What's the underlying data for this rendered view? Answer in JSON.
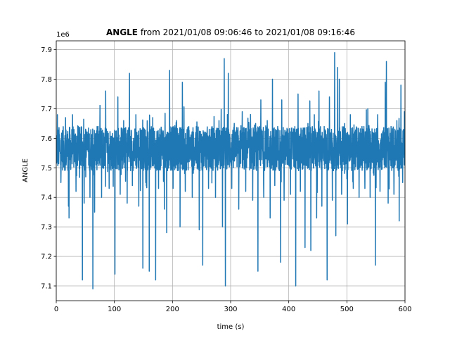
{
  "chart_data": {
    "type": "line",
    "title_bold": "ANGLE",
    "title_rest": " from 2021/01/08 09:06:46 to 2021/01/08 09:16:46",
    "xlabel": "time (s)",
    "ylabel": "ANGLE",
    "offset_label": "1e6",
    "xlim": [
      0,
      600
    ],
    "ylim": [
      7.05,
      7.93
    ],
    "x_ticks": [
      0,
      100,
      200,
      300,
      400,
      500,
      600
    ],
    "y_ticks": [
      7.1,
      7.2,
      7.3,
      7.4,
      7.5,
      7.6,
      7.7,
      7.8,
      7.9
    ],
    "x_tick_labels": [
      "0",
      "100",
      "200",
      "300",
      "400",
      "500",
      "600"
    ],
    "y_tick_labels": [
      "7.1",
      "7.2",
      "7.3",
      "7.4",
      "7.5",
      "7.6",
      "7.7",
      "7.8",
      "7.9"
    ],
    "grid": true,
    "line_color": "#1f77b4",
    "series": [
      {
        "baseline_band": [
          7.49,
          7.64
        ],
        "spikes": [
          {
            "x": 2,
            "y": 7.68
          },
          {
            "x": 8,
            "y": 7.45
          },
          {
            "x": 16,
            "y": 7.67
          },
          {
            "x": 21,
            "y": 7.37
          },
          {
            "x": 22,
            "y": 7.33
          },
          {
            "x": 28,
            "y": 7.68
          },
          {
            "x": 34,
            "y": 7.42
          },
          {
            "x": 38,
            "y": 7.64
          },
          {
            "x": 45,
            "y": 7.12
          },
          {
            "x": 48,
            "y": 7.38
          },
          {
            "x": 52,
            "y": 7.62
          },
          {
            "x": 58,
            "y": 7.4
          },
          {
            "x": 63,
            "y": 7.09
          },
          {
            "x": 66,
            "y": 7.35
          },
          {
            "x": 72,
            "y": 7.64
          },
          {
            "x": 78,
            "y": 7.4
          },
          {
            "x": 85,
            "y": 7.76
          },
          {
            "x": 91,
            "y": 7.43
          },
          {
            "x": 95,
            "y": 7.6
          },
          {
            "x": 101,
            "y": 7.14
          },
          {
            "x": 106,
            "y": 7.74
          },
          {
            "x": 110,
            "y": 7.41
          },
          {
            "x": 116,
            "y": 7.66
          },
          {
            "x": 122,
            "y": 7.38
          },
          {
            "x": 126,
            "y": 7.82
          },
          {
            "x": 131,
            "y": 7.44
          },
          {
            "x": 137,
            "y": 7.68
          },
          {
            "x": 142,
            "y": 7.37
          },
          {
            "x": 149,
            "y": 7.16
          },
          {
            "x": 154,
            "y": 7.45
          },
          {
            "x": 160,
            "y": 7.15
          },
          {
            "x": 166,
            "y": 7.67
          },
          {
            "x": 171,
            "y": 7.12
          },
          {
            "x": 176,
            "y": 7.43
          },
          {
            "x": 181,
            "y": 7.63
          },
          {
            "x": 186,
            "y": 7.36
          },
          {
            "x": 190,
            "y": 7.28
          },
          {
            "x": 195,
            "y": 7.83
          },
          {
            "x": 201,
            "y": 7.43
          },
          {
            "x": 207,
            "y": 7.66
          },
          {
            "x": 213,
            "y": 7.3
          },
          {
            "x": 217,
            "y": 7.79
          },
          {
            "x": 222,
            "y": 7.42
          },
          {
            "x": 228,
            "y": 7.64
          },
          {
            "x": 234,
            "y": 7.4
          },
          {
            "x": 240,
            "y": 7.62
          },
          {
            "x": 246,
            "y": 7.29
          },
          {
            "x": 252,
            "y": 7.17
          },
          {
            "x": 256,
            "y": 7.61
          },
          {
            "x": 262,
            "y": 7.43
          },
          {
            "x": 268,
            "y": 7.64
          },
          {
            "x": 274,
            "y": 7.4
          },
          {
            "x": 280,
            "y": 7.66
          },
          {
            "x": 286,
            "y": 7.3
          },
          {
            "x": 289,
            "y": 7.87
          },
          {
            "x": 291,
            "y": 7.1
          },
          {
            "x": 296,
            "y": 7.82
          },
          {
            "x": 302,
            "y": 7.43
          },
          {
            "x": 308,
            "y": 7.62
          },
          {
            "x": 314,
            "y": 7.36
          },
          {
            "x": 320,
            "y": 7.69
          },
          {
            "x": 326,
            "y": 7.42
          },
          {
            "x": 332,
            "y": 7.63
          },
          {
            "x": 338,
            "y": 7.39
          },
          {
            "x": 343,
            "y": 7.65
          },
          {
            "x": 347,
            "y": 7.15
          },
          {
            "x": 352,
            "y": 7.73
          },
          {
            "x": 357,
            "y": 7.4
          },
          {
            "x": 363,
            "y": 7.66
          },
          {
            "x": 368,
            "y": 7.33
          },
          {
            "x": 372,
            "y": 7.8
          },
          {
            "x": 376,
            "y": 7.44
          },
          {
            "x": 381,
            "y": 7.64
          },
          {
            "x": 386,
            "y": 7.18
          },
          {
            "x": 388,
            "y": 7.73
          },
          {
            "x": 392,
            "y": 7.39
          },
          {
            "x": 398,
            "y": 7.63
          },
          {
            "x": 403,
            "y": 7.41
          },
          {
            "x": 407,
            "y": 7.6
          },
          {
            "x": 412,
            "y": 7.1
          },
          {
            "x": 416,
            "y": 7.75
          },
          {
            "x": 420,
            "y": 7.42
          },
          {
            "x": 424,
            "y": 7.62
          },
          {
            "x": 428,
            "y": 7.23
          },
          {
            "x": 433,
            "y": 7.65
          },
          {
            "x": 438,
            "y": 7.22
          },
          {
            "x": 444,
            "y": 7.68
          },
          {
            "x": 448,
            "y": 7.33
          },
          {
            "x": 452,
            "y": 7.76
          },
          {
            "x": 457,
            "y": 7.37
          },
          {
            "x": 461,
            "y": 7.64
          },
          {
            "x": 466,
            "y": 7.12
          },
          {
            "x": 470,
            "y": 7.74
          },
          {
            "x": 475,
            "y": 7.39
          },
          {
            "x": 479,
            "y": 7.89
          },
          {
            "x": 481,
            "y": 7.27
          },
          {
            "x": 484,
            "y": 7.84
          },
          {
            "x": 487,
            "y": 7.8
          },
          {
            "x": 491,
            "y": 7.41
          },
          {
            "x": 496,
            "y": 7.65
          },
          {
            "x": 501,
            "y": 7.31
          },
          {
            "x": 506,
            "y": 7.68
          },
          {
            "x": 511,
            "y": 7.43
          },
          {
            "x": 516,
            "y": 7.62
          },
          {
            "x": 521,
            "y": 7.4
          },
          {
            "x": 526,
            "y": 7.64
          },
          {
            "x": 531,
            "y": 7.43
          },
          {
            "x": 536,
            "y": 7.7
          },
          {
            "x": 540,
            "y": 7.4
          },
          {
            "x": 545,
            "y": 7.62
          },
          {
            "x": 549,
            "y": 7.17
          },
          {
            "x": 553,
            "y": 7.68
          },
          {
            "x": 557,
            "y": 7.42
          },
          {
            "x": 561,
            "y": 7.6
          },
          {
            "x": 566,
            "y": 7.79
          },
          {
            "x": 568,
            "y": 7.86
          },
          {
            "x": 571,
            "y": 7.38
          },
          {
            "x": 576,
            "y": 7.64
          },
          {
            "x": 581,
            "y": 7.41
          },
          {
            "x": 586,
            "y": 7.66
          },
          {
            "x": 590,
            "y": 7.32
          },
          {
            "x": 593,
            "y": 7.78
          },
          {
            "x": 596,
            "y": 7.45
          },
          {
            "x": 599,
            "y": 7.69
          }
        ]
      }
    ]
  }
}
